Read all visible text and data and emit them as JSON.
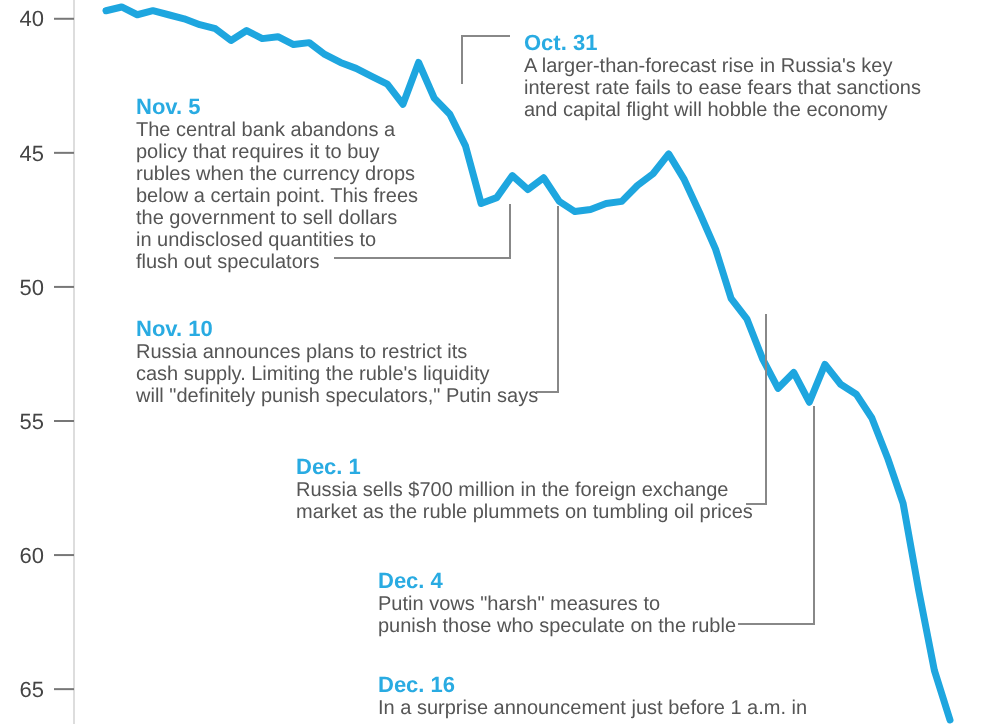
{
  "chart_data": {
    "type": "line",
    "categories": [
      null,
      null,
      null,
      null,
      null,
      null,
      null,
      null,
      null,
      null,
      null,
      null,
      null,
      null,
      null,
      null,
      null,
      null,
      null,
      null,
      null,
      null,
      null,
      null,
      null,
      null,
      null,
      null,
      null,
      null,
      null,
      null,
      null,
      null,
      null,
      null,
      null,
      null,
      null,
      null,
      null,
      null,
      null,
      null,
      null,
      null,
      null,
      null,
      null,
      null,
      null,
      null,
      null,
      null,
      null
    ],
    "series": [
      {
        "color": "#1ea6df",
        "values": [
          39.7,
          39.56,
          39.85,
          39.7,
          39.85,
          40,
          40.22,
          40.37,
          40.81,
          40.44,
          40.74,
          40.67,
          40.96,
          40.89,
          41.33,
          41.63,
          41.85,
          42.15,
          42.44,
          43.19,
          41.63,
          42.96,
          43.56,
          44.74,
          46.89,
          46.67,
          45.85,
          46.37,
          45.93,
          46.81,
          47.19,
          47.11,
          46.89,
          46.81,
          46.22,
          45.78,
          45.04,
          46.0,
          47.26,
          48.59,
          50.44,
          51.19,
          52.67,
          53.78,
          53.19,
          54.3,
          52.89,
          53.63,
          54.0,
          54.89,
          56.37,
          58.07,
          61.33,
          64.3,
          66.15
        ]
      }
    ],
    "ylim": [
      66.3,
      39.3
    ],
    "yticks": [
      40,
      45,
      50,
      55,
      60,
      65
    ],
    "grid": false,
    "tick_labels": "y",
    "marker": "none",
    "line_style": "solid",
    "annotations": [
      "Oct. 31\nA larger-than-forecast rise in Russia's key\ninterest rate fails to ease fears that sanctions\nand capital flight will hobble the economy",
      "Nov. 5\nThe central bank abandons a\npolicy that requires it to buy\nrubles when the currency drops\nbelow a certain point. This frees\nthe government to sell dollars\nin undisclosed quantities to\nflush out speculators",
      "Nov. 10\nRussia announces plans to restrict its\ncash supply. Limiting the ruble's liquidity\nwill \"definitely punish speculators,\" Putin says",
      "Dec. 1\nRussia sells $700 million in the foreign exchange\nmarket as the ruble plummets on tumbling oil prices",
      "Dec. 4\nPutin vows \"harsh\" measures to\npunish those who speculate on the ruble",
      "Dec. 16\nIn a surprise announcement just before 1 a.m. in"
    ]
  }
}
